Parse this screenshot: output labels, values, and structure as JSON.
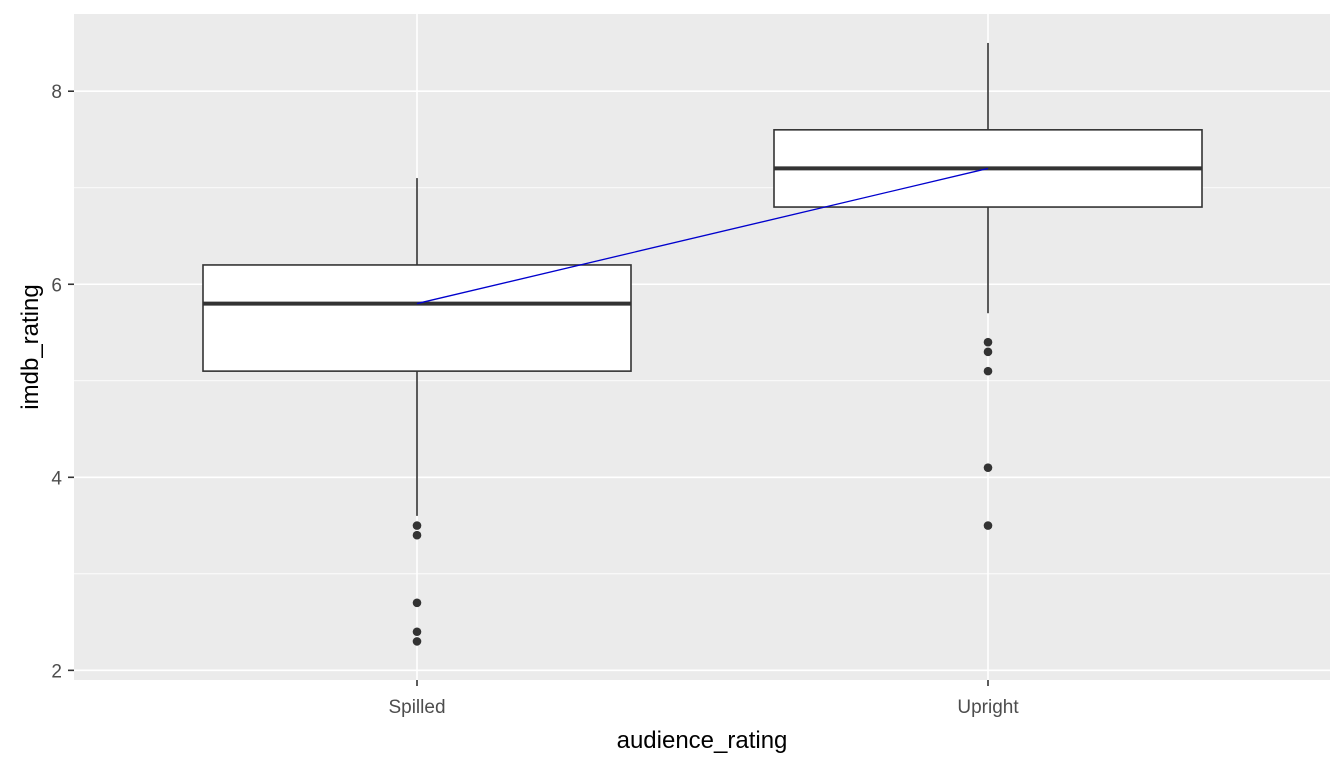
{
  "chart_data": {
    "type": "boxplot",
    "title": "",
    "xlabel": "audience_rating",
    "ylabel": "imdb_rating",
    "categories": [
      "Spilled",
      "Upright"
    ],
    "ylim": [
      1.9,
      8.8
    ],
    "y_ticks": [
      2,
      4,
      6,
      8
    ],
    "grid": true,
    "boxes": [
      {
        "category": "Spilled",
        "whisker_low": 3.6,
        "q1": 5.1,
        "median": 5.8,
        "q3": 6.2,
        "whisker_high": 7.1,
        "outliers": [
          3.5,
          3.4,
          2.7,
          2.4,
          2.3
        ]
      },
      {
        "category": "Upright",
        "whisker_low": 5.7,
        "q1": 6.8,
        "median": 7.2,
        "q3": 7.6,
        "whisker_high": 8.5,
        "outliers": [
          5.4,
          5.3,
          5.1,
          4.1,
          3.5
        ]
      }
    ],
    "median_line": {
      "color": "#0000cd",
      "points": [
        {
          "category": "Spilled",
          "y": 5.8
        },
        {
          "category": "Upright",
          "y": 7.2
        }
      ]
    },
    "colors": {
      "panel_background": "#ebebeb",
      "grid_major": "#ffffff",
      "box_fill": "#ffffff",
      "box_stroke": "#333333",
      "outlier": "#333333"
    }
  }
}
